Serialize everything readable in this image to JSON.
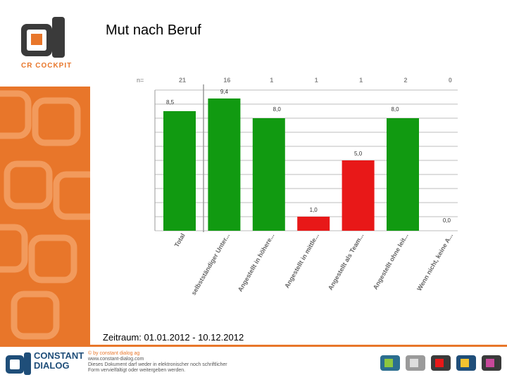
{
  "header": {
    "title": "Mut nach Beruf"
  },
  "sidebar": {
    "logo_text": "CR COCKPIT"
  },
  "period": "Zeitraum: 01.01.2012 - 10.12.2012",
  "footer": {
    "brand_line1": "CONSTANT",
    "brand_line2": "DIALOG",
    "copyright": "© by constant dialog ag",
    "website": "www.constant-dialog.com",
    "notice_line1": "Dieses Dokument darf weder in elektronischer noch schriftlicher",
    "notice_line2": "Form vervielfältigt oder weitergeben werden."
  },
  "chart_data": {
    "type": "bar",
    "n_label": "n=",
    "categories": [
      "Total",
      "selbstständiger Unter...",
      "Angestellt in höhere...",
      "Angestellt in mittle...",
      "Angestellt als Team...",
      "Angestellt ohne leit...",
      "Wenn nicht, keine A..."
    ],
    "values": [
      8.5,
      9.4,
      8.0,
      1.0,
      5.0,
      8.0,
      0.0
    ],
    "value_labels": [
      "8,5",
      "9,4",
      "8,0",
      "1,0",
      "5,0",
      "8,0",
      "0,0"
    ],
    "n": [
      "21",
      "16",
      "1",
      "1",
      "1",
      "2",
      "0"
    ],
    "colors": [
      "#119a11",
      "#119a11",
      "#119a11",
      "#e81818",
      "#e81818",
      "#119a11",
      "#119a11"
    ],
    "ylim": [
      0,
      10
    ],
    "grid": true
  }
}
